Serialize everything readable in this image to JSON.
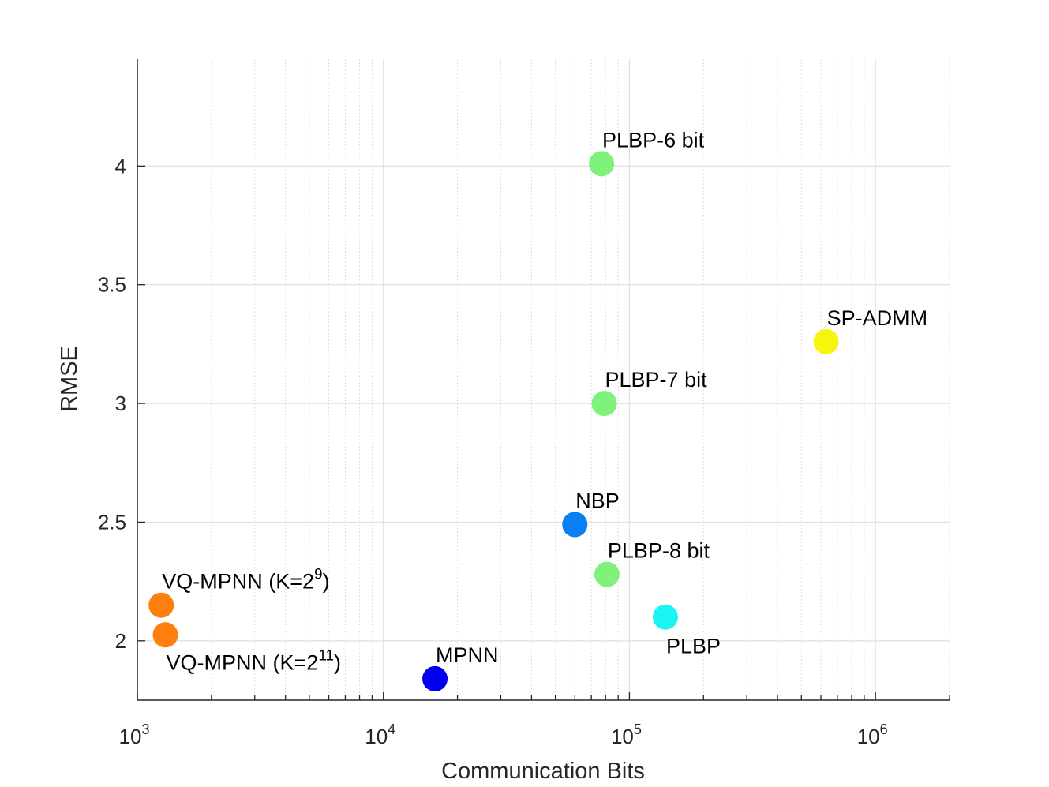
{
  "chart_data": {
    "type": "scatter",
    "title": "",
    "xlabel": "Communication Bits",
    "ylabel": "RMSE",
    "xscale": "log",
    "xlim": [
      1000,
      2000000
    ],
    "ylim": [
      1.75,
      4.45
    ],
    "grid": true,
    "minor_grid_x": true,
    "x_ticks": [
      {
        "value": 1000,
        "base": "10",
        "exp": "3"
      },
      {
        "value": 10000,
        "base": "10",
        "exp": "4"
      },
      {
        "value": 100000,
        "base": "10",
        "exp": "5"
      },
      {
        "value": 1000000,
        "base": "10",
        "exp": "6"
      }
    ],
    "y_ticks": [
      {
        "value": 2,
        "label": "2"
      },
      {
        "value": 2.5,
        "label": "2.5"
      },
      {
        "value": 3,
        "label": "3"
      },
      {
        "value": 3.5,
        "label": "3.5"
      },
      {
        "value": 4,
        "label": "4"
      }
    ],
    "points": [
      {
        "name": "VQ-MPNN (K=2^9)",
        "label": "VQ-MPNN (K=2",
        "label_sup": "9",
        "label_tail": ")",
        "label_pos": "above-right",
        "x": 1250,
        "y": 2.15,
        "color": "#ff7f0e"
      },
      {
        "name": "VQ-MPNN (K=2^11)",
        "label": "VQ-MPNN (K=2",
        "label_sup": "11",
        "label_tail": ")",
        "label_pos": "below-right",
        "x": 1300,
        "y": 2.025,
        "color": "#ff7f0e"
      },
      {
        "name": "MPNN",
        "label": "MPNN",
        "label_sup": "",
        "label_tail": "",
        "label_pos": "above",
        "x": 16200,
        "y": 1.84,
        "color": "#0000ee"
      },
      {
        "name": "NBP",
        "label": "NBP",
        "label_sup": "",
        "label_tail": "",
        "label_pos": "above",
        "x": 60000,
        "y": 2.49,
        "color": "#0a7ff2"
      },
      {
        "name": "PLBP-6 bit",
        "label": "PLBP-6 bit",
        "label_sup": "",
        "label_tail": "",
        "label_pos": "above",
        "x": 77000,
        "y": 4.01,
        "color": "#7ef27a"
      },
      {
        "name": "PLBP-7 bit",
        "label": "PLBP-7 bit",
        "label_sup": "",
        "label_tail": "",
        "label_pos": "above",
        "x": 79000,
        "y": 3.0,
        "color": "#7ef27a"
      },
      {
        "name": "PLBP-8 bit",
        "label": "PLBP-8 bit",
        "label_sup": "",
        "label_tail": "",
        "label_pos": "above",
        "x": 81000,
        "y": 2.28,
        "color": "#7ef27a"
      },
      {
        "name": "PLBP",
        "label": "PLBP",
        "label_sup": "",
        "label_tail": "",
        "label_pos": "below",
        "x": 140000,
        "y": 2.1,
        "color": "#19f5f2"
      },
      {
        "name": "SP-ADMM",
        "label": "SP-ADMM",
        "label_sup": "",
        "label_tail": "",
        "label_pos": "above",
        "x": 630000,
        "y": 3.26,
        "color": "#f5f50f"
      }
    ]
  }
}
